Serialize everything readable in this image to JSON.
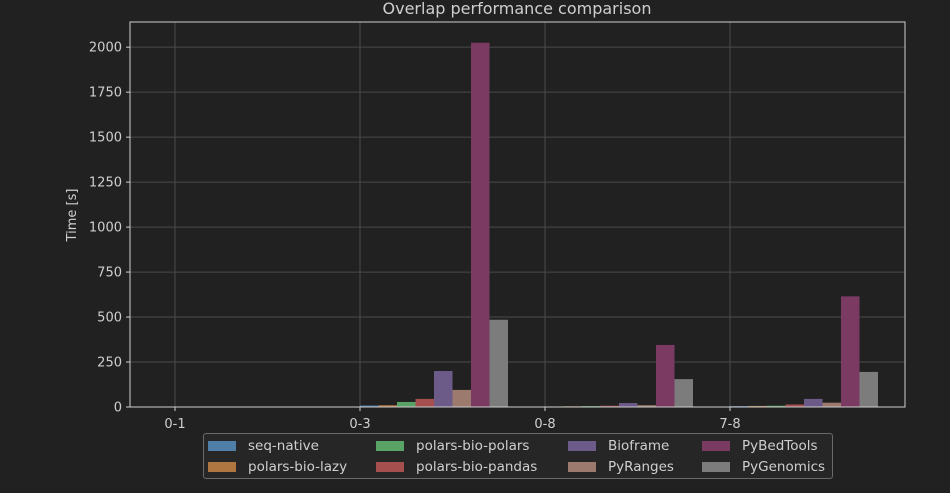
{
  "chart_data": {
    "type": "bar",
    "title": "Overlap performance comparison",
    "xlabel": "",
    "ylabel": "Time [s]",
    "categories": [
      "0-1",
      "0-3",
      "0-8",
      "7-8"
    ],
    "ylim": [
      0,
      2140
    ],
    "yticks": [
      0,
      250,
      500,
      750,
      1000,
      1250,
      1500,
      1750,
      2000
    ],
    "grid": true,
    "legend_position": "bottom",
    "series": [
      {
        "name": "seq-native",
        "color": "#4f7ea8",
        "values": [
          0.3,
          8,
          3,
          5
        ]
      },
      {
        "name": "polars-bio-lazy",
        "color": "#b07642",
        "values": [
          0.5,
          10,
          4,
          6
        ]
      },
      {
        "name": "polars-bio-polars",
        "color": "#5aa366",
        "values": [
          1,
          28,
          5,
          7
        ]
      },
      {
        "name": "polars-bio-pandas",
        "color": "#a64f4f",
        "values": [
          1.5,
          45,
          7,
          14
        ]
      },
      {
        "name": "Bioframe",
        "color": "#6c5a88",
        "values": [
          2,
          200,
          22,
          45
        ]
      },
      {
        "name": "PyRanges",
        "color": "#9c7a6e",
        "values": [
          1,
          95,
          10,
          24
        ]
      },
      {
        "name": "PyBedTools",
        "color": "#7a3a62",
        "values": [
          3,
          2025,
          345,
          615
        ]
      },
      {
        "name": "PyGenomics",
        "color": "#7c7c7c",
        "values": [
          2,
          485,
          155,
          195
        ]
      }
    ]
  }
}
